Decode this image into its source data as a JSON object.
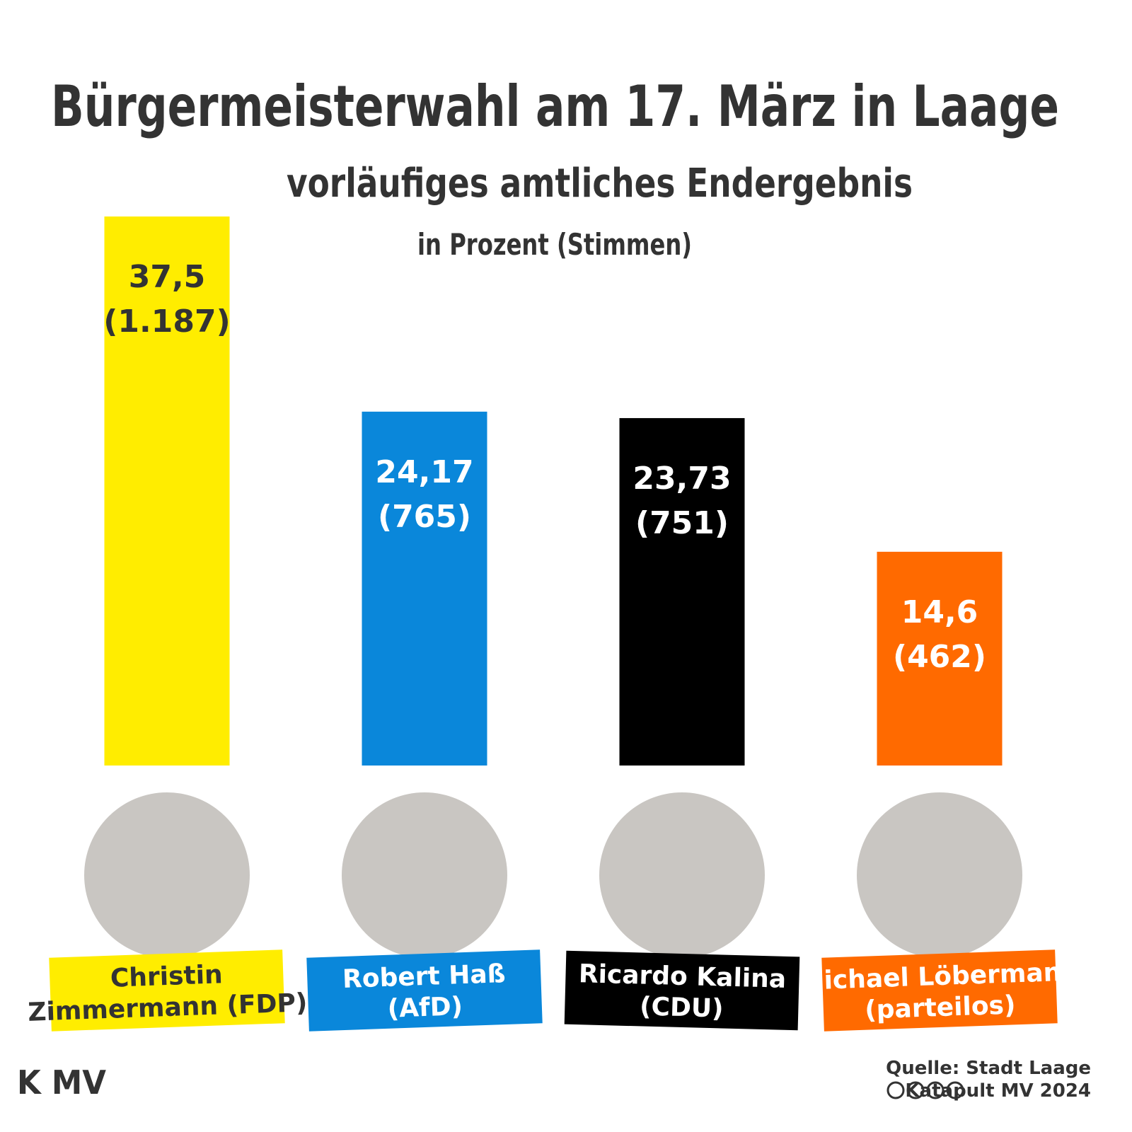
{
  "chart_data": {
    "type": "bar",
    "title": "Bürgermeisterwahl am 17. März in Laage",
    "subtitle": "vorläufiges amtliches Endergebnis",
    "unit_note": "in Prozent (Stimmen)",
    "categories": [
      [
        "Christin",
        "Zimmermann (FDP)"
      ],
      [
        "Robert Haß",
        "(AfD)"
      ],
      [
        "Ricardo Kalina",
        "(CDU)"
      ],
      [
        "Michael Löbermann",
        "(parteilos)"
      ]
    ],
    "values": [
      37.5,
      24.17,
      23.73,
      14.6
    ],
    "value_labels": [
      "37,5",
      "24,17",
      "23,73",
      "14,6"
    ],
    "vote_labels": [
      "(1.187)",
      "(765)",
      "(751)",
      "(462)"
    ],
    "colors": [
      "#ffed00",
      "#0a87da",
      "#000000",
      "#ff6a00"
    ],
    "source": "Quelle: Stadt Laage",
    "credit": "Katapult MV 2024",
    "logo": "K MV"
  }
}
